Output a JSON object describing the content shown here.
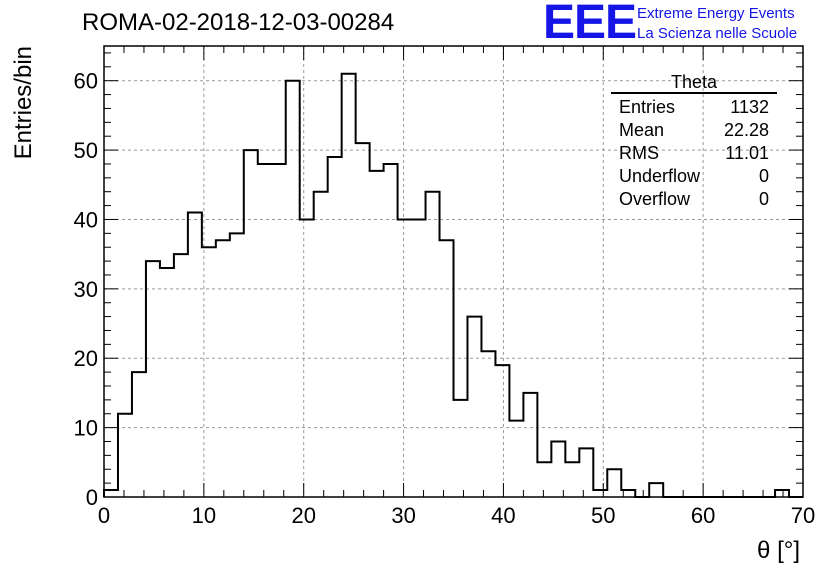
{
  "title": "ROMA-02-2018-12-03-00284",
  "logo": {
    "mark": "EEE",
    "line1": "Extreme Energy Events",
    "line2": "La Scienza nelle Scuole",
    "color": "#1515e6"
  },
  "stats": {
    "title": "Theta",
    "rows": [
      {
        "label": "Entries",
        "value": "1132"
      },
      {
        "label": "Mean",
        "value": "22.28"
      },
      {
        "label": "RMS",
        "value": "11.01"
      },
      {
        "label": "Underflow",
        "value": "0"
      },
      {
        "label": "Overflow",
        "value": "0"
      }
    ]
  },
  "chart_data": {
    "type": "histogram",
    "xlabel": "θ [°]",
    "ylabel": "Entries/bin",
    "xlim": [
      0,
      70
    ],
    "ylim": [
      0,
      65
    ],
    "bin_width": 1.4,
    "bin_edges_start": 0,
    "xticks": [
      0,
      10,
      20,
      30,
      40,
      50,
      60,
      70
    ],
    "yticks": [
      0,
      10,
      20,
      30,
      40,
      50,
      60
    ],
    "grid": true,
    "values": [
      1,
      12,
      18,
      34,
      33,
      35,
      41,
      36,
      37,
      38,
      50,
      48,
      48,
      60,
      40,
      44,
      49,
      61,
      51,
      47,
      48,
      40,
      40,
      44,
      37,
      14,
      26,
      21,
      19,
      11,
      15,
      5,
      8,
      5,
      7,
      1,
      4,
      1,
      0,
      2,
      0,
      0,
      0,
      0,
      0,
      0,
      0,
      0,
      1,
      0
    ],
    "line_color": "#000000"
  }
}
